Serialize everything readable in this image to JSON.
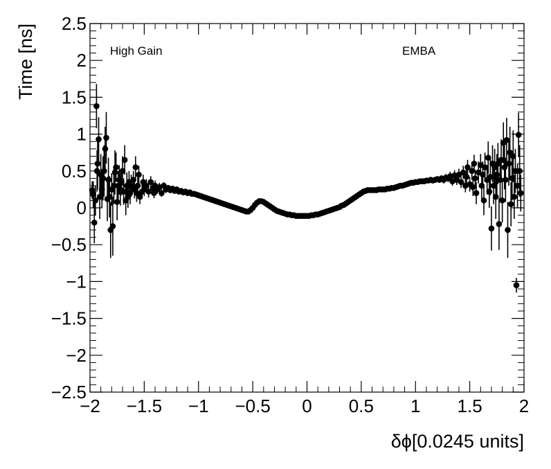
{
  "chart_data": {
    "type": "scatter",
    "title": "",
    "xlabel": "δϕ[0.0245 units]",
    "ylabel": "Time [ns]",
    "xlim": [
      -2,
      2
    ],
    "ylim": [
      -2.5,
      2.5
    ],
    "x_ticks": [
      -2,
      -1.5,
      -1,
      -0.5,
      0,
      0.5,
      1,
      1.5,
      2
    ],
    "x_tick_labels": [
      "−2",
      "−1.5",
      "−1",
      "−0.5",
      "0",
      "0.5",
      "1",
      "1.5",
      "2"
    ],
    "y_ticks": [
      -2.5,
      -2,
      -1.5,
      -1,
      -0.5,
      0,
      0.5,
      1,
      1.5,
      2,
      2.5
    ],
    "y_tick_labels": [
      "−2.5",
      "−2",
      "−1.5",
      "−1",
      "−0.5",
      "0",
      "0.5",
      "1",
      "1.5",
      "2",
      "2.5"
    ],
    "grid": false,
    "legend": "none",
    "annotations": [
      "High Gain",
      "EMBA"
    ],
    "marker_color": "#000000",
    "points": [
      [
        -1.98,
        0.24,
        0.12
      ],
      [
        -1.97,
        0.18,
        0.18
      ],
      [
        -1.96,
        -0.2,
        0.28
      ],
      [
        -1.95,
        0.1,
        0.2
      ],
      [
        -1.94,
        1.38,
        0.3
      ],
      [
        -1.935,
        0.5,
        0.28
      ],
      [
        -1.93,
        0.6,
        0.35
      ],
      [
        -1.92,
        0.93,
        0.3
      ],
      [
        -1.91,
        0.15,
        0.3
      ],
      [
        -1.9,
        0.45,
        0.28
      ],
      [
        -1.89,
        0.25,
        0.25
      ],
      [
        -1.88,
        0.4,
        0.3
      ],
      [
        -1.87,
        0.5,
        0.35
      ],
      [
        -1.86,
        0.8,
        0.3
      ],
      [
        -1.85,
        0.95,
        0.35
      ],
      [
        -1.84,
        0.12,
        0.3
      ],
      [
        -1.83,
        0.38,
        0.3
      ],
      [
        -1.82,
        0.15,
        0.28
      ],
      [
        -1.81,
        -0.3,
        0.38
      ],
      [
        -1.8,
        0.25,
        0.22
      ],
      [
        -1.79,
        -0.25,
        0.4
      ],
      [
        -1.78,
        0.3,
        0.25
      ],
      [
        -1.77,
        0.48,
        0.3
      ],
      [
        -1.76,
        0.55,
        0.2
      ],
      [
        -1.75,
        0.08,
        0.25
      ],
      [
        -1.74,
        0.3,
        0.2
      ],
      [
        -1.73,
        0.38,
        0.2
      ],
      [
        -1.72,
        0.25,
        0.22
      ],
      [
        -1.71,
        0.35,
        0.18
      ],
      [
        -1.7,
        0.5,
        0.2
      ],
      [
        -1.69,
        0.22,
        0.18
      ],
      [
        -1.68,
        0.65,
        0.2
      ],
      [
        -1.67,
        0.1,
        0.2
      ],
      [
        -1.66,
        0.3,
        0.18
      ],
      [
        -1.65,
        0.15,
        0.15
      ],
      [
        -1.64,
        0.35,
        0.15
      ],
      [
        -1.63,
        0.2,
        0.15
      ],
      [
        -1.62,
        0.3,
        0.15
      ],
      [
        -1.6,
        0.38,
        0.12
      ],
      [
        -1.59,
        0.25,
        0.12
      ],
      [
        -1.58,
        0.55,
        0.15
      ],
      [
        -1.57,
        0.2,
        0.12
      ],
      [
        -1.56,
        0.3,
        0.12
      ],
      [
        -1.55,
        0.45,
        0.12
      ],
      [
        -1.54,
        0.15,
        0.1
      ],
      [
        -1.52,
        0.22,
        0.1
      ],
      [
        -1.51,
        0.35,
        0.1
      ],
      [
        -1.5,
        0.25,
        0.09
      ],
      [
        -1.48,
        0.3,
        0.09
      ],
      [
        -1.46,
        0.22,
        0.08
      ],
      [
        -1.44,
        0.35,
        0.08
      ],
      [
        -1.42,
        0.27,
        0.07
      ],
      [
        -1.41,
        0.2,
        0.07
      ],
      [
        -1.4,
        0.3,
        0.07
      ],
      [
        -1.38,
        0.25,
        0.06
      ],
      [
        -1.36,
        0.28,
        0.06
      ],
      [
        -1.34,
        0.2,
        0.05
      ],
      [
        -1.32,
        0.3,
        0.05
      ],
      [
        -1.3,
        0.25,
        0.05
      ],
      [
        -1.28,
        0.27,
        0.04
      ],
      [
        -1.26,
        0.24,
        0.04
      ],
      [
        -1.24,
        0.26,
        0.04
      ],
      [
        -1.22,
        0.23,
        0.03
      ],
      [
        -1.2,
        0.25,
        0.03
      ],
      [
        -1.18,
        0.22,
        0.03
      ],
      [
        -1.16,
        0.23,
        0.02
      ],
      [
        -1.14,
        0.21,
        0.02
      ],
      [
        -1.12,
        0.22,
        0.02
      ],
      [
        -1.1,
        0.2,
        0.02
      ],
      [
        -1.08,
        0.21,
        0.02
      ],
      [
        -1.06,
        0.19,
        0.02
      ],
      [
        -1.04,
        0.19,
        0.02
      ],
      [
        -1.02,
        0.18,
        0.02
      ],
      [
        -1.0,
        0.17,
        0.02
      ],
      [
        -0.98,
        0.16,
        0.02
      ],
      [
        -0.96,
        0.15,
        0.02
      ],
      [
        -0.94,
        0.14,
        0.02
      ],
      [
        -0.92,
        0.13,
        0.02
      ],
      [
        -0.9,
        0.12,
        0.02
      ],
      [
        -0.88,
        0.11,
        0.02
      ],
      [
        -0.86,
        0.1,
        0.02
      ],
      [
        -0.84,
        0.09,
        0.02
      ],
      [
        -0.82,
        0.08,
        0.02
      ],
      [
        -0.8,
        0.07,
        0.02
      ],
      [
        -0.78,
        0.06,
        0.02
      ],
      [
        -0.76,
        0.05,
        0.02
      ],
      [
        -0.74,
        0.04,
        0.02
      ],
      [
        -0.72,
        0.03,
        0.02
      ],
      [
        -0.7,
        0.02,
        0.02
      ],
      [
        -0.68,
        0.01,
        0.02
      ],
      [
        -0.66,
        0.0,
        0.02
      ],
      [
        -0.64,
        -0.01,
        0.02
      ],
      [
        -0.62,
        -0.02,
        0.02
      ],
      [
        -0.6,
        -0.03,
        0.02
      ],
      [
        -0.58,
        -0.04,
        0.02
      ],
      [
        -0.56,
        -0.05,
        0.02
      ],
      [
        -0.54,
        -0.05,
        0.02
      ],
      [
        -0.52,
        -0.03,
        0.02
      ],
      [
        -0.5,
        0.0,
        0.02
      ],
      [
        -0.48,
        0.04,
        0.02
      ],
      [
        -0.46,
        0.07,
        0.02
      ],
      [
        -0.44,
        0.09,
        0.02
      ],
      [
        -0.42,
        0.09,
        0.02
      ],
      [
        -0.4,
        0.08,
        0.02
      ],
      [
        -0.38,
        0.06,
        0.02
      ],
      [
        -0.36,
        0.04,
        0.02
      ],
      [
        -0.34,
        0.02,
        0.02
      ],
      [
        -0.32,
        0.0,
        0.02
      ],
      [
        -0.3,
        -0.02,
        0.02
      ],
      [
        -0.28,
        -0.04,
        0.02
      ],
      [
        -0.26,
        -0.05,
        0.02
      ],
      [
        -0.24,
        -0.06,
        0.02
      ],
      [
        -0.22,
        -0.07,
        0.02
      ],
      [
        -0.2,
        -0.08,
        0.02
      ],
      [
        -0.18,
        -0.09,
        0.02
      ],
      [
        -0.16,
        -0.09,
        0.02
      ],
      [
        -0.14,
        -0.1,
        0.02
      ],
      [
        -0.12,
        -0.1,
        0.02
      ],
      [
        -0.1,
        -0.11,
        0.02
      ],
      [
        -0.08,
        -0.11,
        0.02
      ],
      [
        -0.06,
        -0.11,
        0.02
      ],
      [
        -0.04,
        -0.11,
        0.02
      ],
      [
        -0.02,
        -0.11,
        0.02
      ],
      [
        0.0,
        -0.11,
        0.02
      ],
      [
        0.02,
        -0.11,
        0.02
      ],
      [
        0.04,
        -0.1,
        0.02
      ],
      [
        0.06,
        -0.1,
        0.02
      ],
      [
        0.08,
        -0.09,
        0.02
      ],
      [
        0.1,
        -0.09,
        0.02
      ],
      [
        0.12,
        -0.08,
        0.02
      ],
      [
        0.14,
        -0.07,
        0.02
      ],
      [
        0.16,
        -0.06,
        0.02
      ],
      [
        0.18,
        -0.05,
        0.02
      ],
      [
        0.2,
        -0.04,
        0.02
      ],
      [
        0.22,
        -0.03,
        0.02
      ],
      [
        0.24,
        -0.02,
        0.02
      ],
      [
        0.26,
        -0.01,
        0.02
      ],
      [
        0.28,
        0.0,
        0.02
      ],
      [
        0.3,
        0.01,
        0.02
      ],
      [
        0.32,
        0.03,
        0.02
      ],
      [
        0.34,
        0.04,
        0.02
      ],
      [
        0.36,
        0.06,
        0.02
      ],
      [
        0.38,
        0.08,
        0.02
      ],
      [
        0.4,
        0.1,
        0.02
      ],
      [
        0.42,
        0.12,
        0.02
      ],
      [
        0.44,
        0.14,
        0.02
      ],
      [
        0.46,
        0.16,
        0.02
      ],
      [
        0.48,
        0.18,
        0.02
      ],
      [
        0.5,
        0.2,
        0.02
      ],
      [
        0.52,
        0.22,
        0.02
      ],
      [
        0.54,
        0.23,
        0.02
      ],
      [
        0.56,
        0.24,
        0.02
      ],
      [
        0.58,
        0.24,
        0.02
      ],
      [
        0.6,
        0.24,
        0.02
      ],
      [
        0.62,
        0.24,
        0.02
      ],
      [
        0.64,
        0.24,
        0.02
      ],
      [
        0.66,
        0.25,
        0.02
      ],
      [
        0.68,
        0.25,
        0.02
      ],
      [
        0.7,
        0.25,
        0.02
      ],
      [
        0.72,
        0.25,
        0.02
      ],
      [
        0.74,
        0.26,
        0.02
      ],
      [
        0.76,
        0.26,
        0.02
      ],
      [
        0.78,
        0.27,
        0.02
      ],
      [
        0.8,
        0.27,
        0.02
      ],
      [
        0.82,
        0.28,
        0.02
      ],
      [
        0.84,
        0.29,
        0.02
      ],
      [
        0.86,
        0.3,
        0.02
      ],
      [
        0.88,
        0.3,
        0.02
      ],
      [
        0.9,
        0.31,
        0.02
      ],
      [
        0.92,
        0.32,
        0.02
      ],
      [
        0.94,
        0.33,
        0.02
      ],
      [
        0.96,
        0.34,
        0.02
      ],
      [
        0.98,
        0.34,
        0.02
      ],
      [
        1.0,
        0.35,
        0.02
      ],
      [
        1.02,
        0.35,
        0.02
      ],
      [
        1.04,
        0.36,
        0.02
      ],
      [
        1.06,
        0.36,
        0.03
      ],
      [
        1.08,
        0.36,
        0.03
      ],
      [
        1.1,
        0.37,
        0.03
      ],
      [
        1.12,
        0.37,
        0.03
      ],
      [
        1.14,
        0.38,
        0.03
      ],
      [
        1.16,
        0.37,
        0.03
      ],
      [
        1.18,
        0.38,
        0.03
      ],
      [
        1.2,
        0.39,
        0.04
      ],
      [
        1.22,
        0.38,
        0.04
      ],
      [
        1.24,
        0.4,
        0.04
      ],
      [
        1.26,
        0.38,
        0.05
      ],
      [
        1.28,
        0.41,
        0.05
      ],
      [
        1.3,
        0.4,
        0.05
      ],
      [
        1.32,
        0.43,
        0.06
      ],
      [
        1.34,
        0.36,
        0.06
      ],
      [
        1.36,
        0.44,
        0.07
      ],
      [
        1.38,
        0.38,
        0.07
      ],
      [
        1.4,
        0.45,
        0.08
      ],
      [
        1.42,
        0.35,
        0.08
      ],
      [
        1.44,
        0.48,
        0.09
      ],
      [
        1.46,
        0.3,
        0.09
      ],
      [
        1.47,
        0.42,
        0.1
      ],
      [
        1.48,
        0.55,
        0.1
      ],
      [
        1.5,
        0.32,
        0.1
      ],
      [
        1.52,
        0.5,
        0.12
      ],
      [
        1.53,
        0.28,
        0.12
      ],
      [
        1.54,
        0.6,
        0.12
      ],
      [
        1.55,
        0.4,
        0.12
      ],
      [
        1.56,
        0.2,
        0.15
      ],
      [
        1.58,
        0.48,
        0.15
      ],
      [
        1.6,
        0.58,
        0.15
      ],
      [
        1.61,
        0.3,
        0.18
      ],
      [
        1.62,
        0.45,
        0.18
      ],
      [
        1.63,
        0.1,
        0.2
      ],
      [
        1.64,
        0.55,
        0.2
      ],
      [
        1.66,
        0.38,
        0.2
      ],
      [
        1.67,
        0.68,
        0.22
      ],
      [
        1.68,
        0.22,
        0.22
      ],
      [
        1.69,
        0.42,
        0.25
      ],
      [
        1.7,
        -0.28,
        0.3
      ],
      [
        1.71,
        0.6,
        0.25
      ],
      [
        1.72,
        0.3,
        0.25
      ],
      [
        1.73,
        0.55,
        0.25
      ],
      [
        1.74,
        0.15,
        0.3
      ],
      [
        1.75,
        0.45,
        0.28
      ],
      [
        1.76,
        0.6,
        0.28
      ],
      [
        1.77,
        -0.22,
        0.35
      ],
      [
        1.78,
        0.38,
        0.3
      ],
      [
        1.79,
        0.65,
        0.28
      ],
      [
        1.8,
        0.1,
        0.3
      ],
      [
        1.81,
        0.88,
        0.28
      ],
      [
        1.82,
        0.55,
        0.3
      ],
      [
        1.83,
        0.38,
        0.3
      ],
      [
        1.84,
        0.92,
        0.3
      ],
      [
        1.85,
        -0.3,
        0.38
      ],
      [
        1.86,
        0.6,
        0.3
      ],
      [
        1.87,
        0.75,
        0.35
      ],
      [
        1.88,
        0.05,
        0.3
      ],
      [
        1.89,
        0.4,
        0.3
      ],
      [
        1.9,
        0.7,
        0.35
      ],
      [
        1.91,
        0.15,
        0.3
      ],
      [
        1.92,
        0.5,
        0.3
      ],
      [
        1.93,
        -1.05,
        0.1
      ],
      [
        1.94,
        0.3,
        0.3
      ],
      [
        1.95,
        0.99,
        0.3
      ],
      [
        1.96,
        0.5,
        0.35
      ],
      [
        1.97,
        0.2,
        0.25
      ]
    ]
  }
}
